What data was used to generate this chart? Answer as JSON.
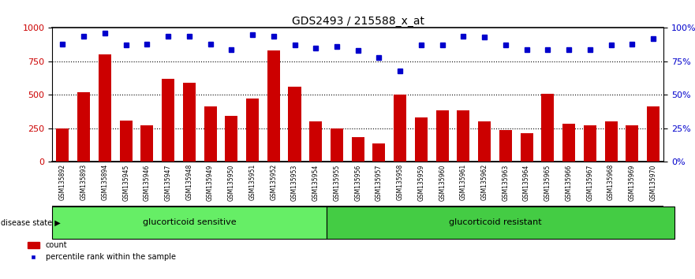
{
  "title": "GDS2493 / 215588_x_at",
  "samples": [
    "GSM135892",
    "GSM135893",
    "GSM135894",
    "GSM135945",
    "GSM135946",
    "GSM135947",
    "GSM135948",
    "GSM135949",
    "GSM135950",
    "GSM135951",
    "GSM135952",
    "GSM135953",
    "GSM135954",
    "GSM135955",
    "GSM135956",
    "GSM135957",
    "GSM135958",
    "GSM135959",
    "GSM135960",
    "GSM135961",
    "GSM135962",
    "GSM135963",
    "GSM135964",
    "GSM135965",
    "GSM135966",
    "GSM135967",
    "GSM135968",
    "GSM135969",
    "GSM135970"
  ],
  "bar_values": [
    250,
    520,
    800,
    305,
    275,
    620,
    590,
    415,
    345,
    475,
    830,
    560,
    300,
    250,
    185,
    140,
    505,
    330,
    385,
    385,
    300,
    240,
    215,
    510,
    285,
    270,
    300,
    270,
    415
  ],
  "dot_values": [
    88,
    94,
    96,
    87,
    88,
    94,
    94,
    88,
    84,
    95,
    94,
    87,
    85,
    86,
    83,
    78,
    68,
    87,
    87,
    94,
    93,
    87,
    84,
    84,
    84,
    84,
    87,
    88,
    92
  ],
  "group1_label": "glucorticoid sensitive",
  "group2_label": "glucorticoid resistant",
  "group1_count": 13,
  "group2_count": 16,
  "disease_state_label": "disease state",
  "legend_bar": "count",
  "legend_dot": "percentile rank within the sample",
  "bar_color": "#cc0000",
  "dot_color": "#0000cc",
  "group1_color": "#66ee66",
  "group2_color": "#44cc44",
  "ymax": 1000,
  "yticks_left": [
    0,
    250,
    500,
    750,
    1000
  ],
  "yticks_right_pct": [
    0,
    25,
    50,
    75,
    100
  ],
  "bg_color": "#ffffff",
  "tick_area_bg": "#d0d0d0"
}
